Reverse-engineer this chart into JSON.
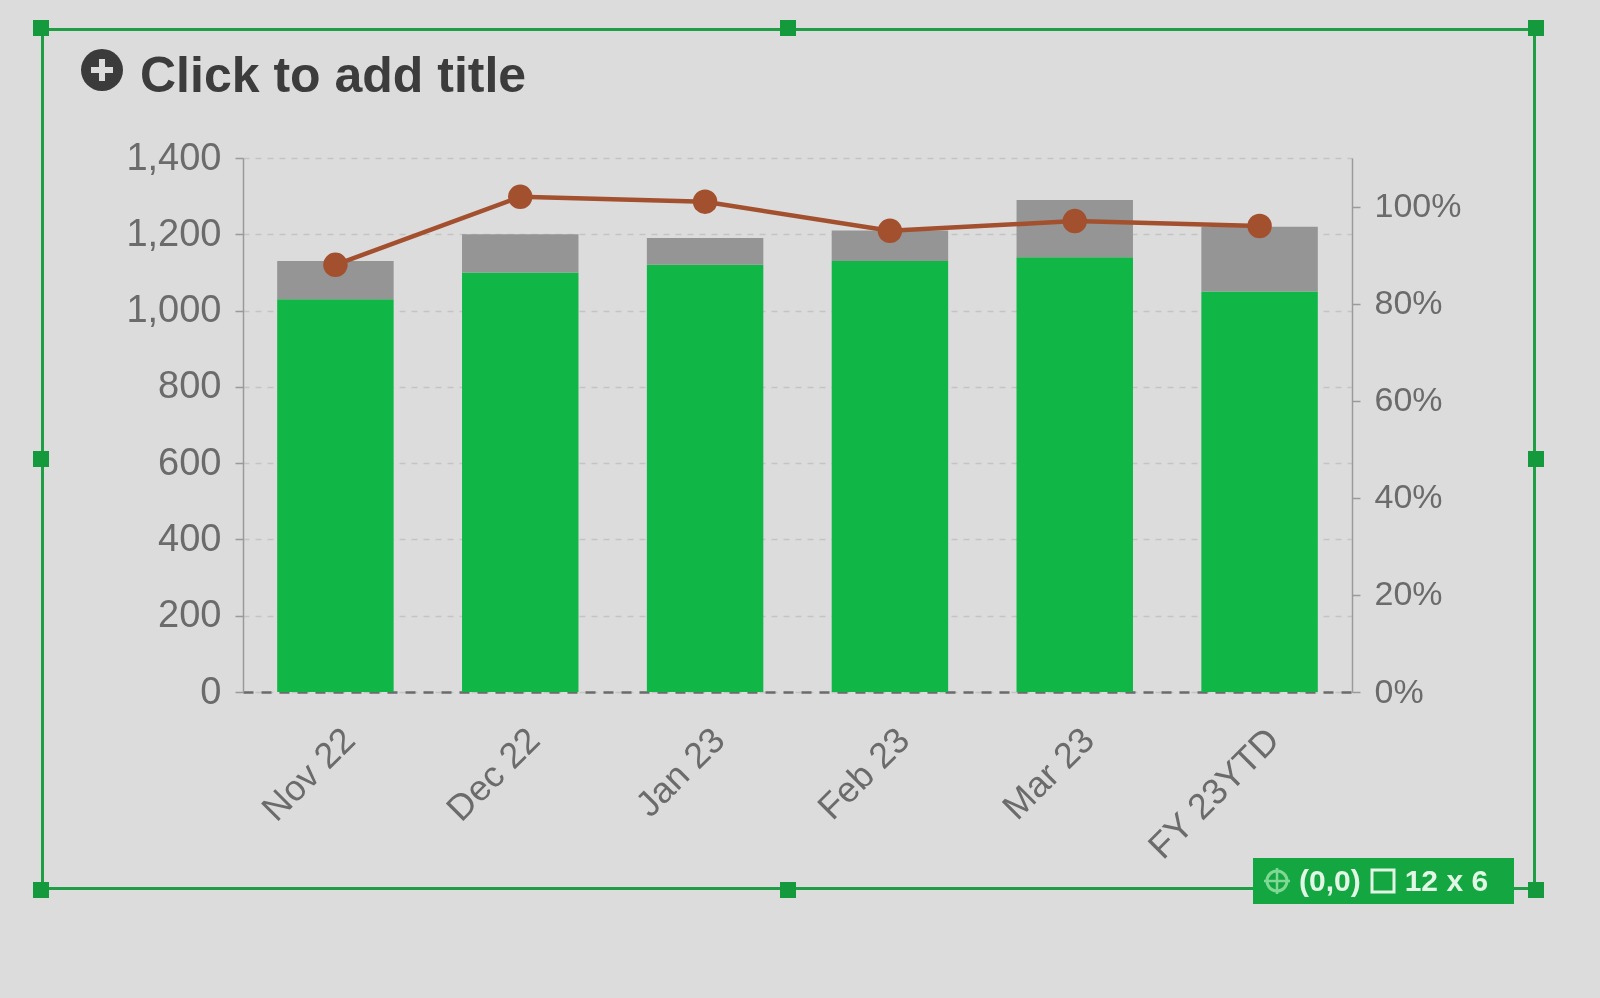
{
  "chart_data": {
    "type": "bar",
    "title": "Click to add title",
    "annotations": [
      "(0,0)",
      "12 x 6"
    ],
    "categories": [
      "Nov 22",
      "Dec 22",
      "Jan 23",
      "Feb 23",
      "Mar 23",
      "FY 23YTD"
    ],
    "stacked": true,
    "series": [
      {
        "color": "#10b646",
        "values": [
          1030,
          1100,
          1120,
          1130,
          1140,
          1050
        ]
      },
      {
        "color": "#959595",
        "values": [
          100,
          100,
          70,
          80,
          150,
          170
        ]
      },
      {
        "type": "line",
        "axis": "y2",
        "color": "#a3502e",
        "values": [
          88,
          102,
          101,
          95,
          97,
          96
        ]
      }
    ],
    "ylim": [
      0,
      1400
    ],
    "yticks": [
      0,
      200,
      400,
      600,
      800,
      {
        "value": 1000,
        "label": "1,000"
      },
      {
        "value": 1200,
        "label": "1,200"
      },
      {
        "value": 1400,
        "label": "1,400"
      }
    ],
    "y2lim": [
      0,
      110
    ],
    "y2ticks": [
      {
        "value": 0,
        "label": "0%"
      },
      {
        "value": 20,
        "label": "20%"
      },
      {
        "value": 40,
        "label": "40%"
      },
      {
        "value": 60,
        "label": "60%"
      },
      {
        "value": 80,
        "label": "80%"
      },
      {
        "value": 100,
        "label": "100%"
      }
    ],
    "grid": "y",
    "marker": "circle"
  }
}
